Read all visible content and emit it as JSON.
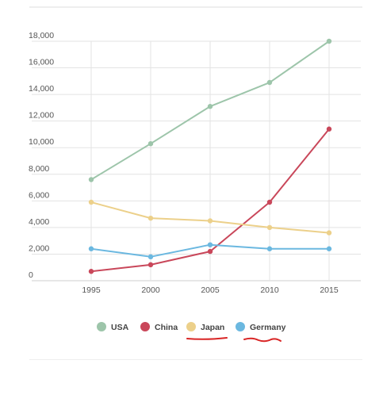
{
  "chart_data": {
    "type": "line",
    "title": "",
    "xlabel": "",
    "ylabel": "",
    "categories": [
      "1995",
      "2000",
      "2005",
      "2010",
      "2015"
    ],
    "ylim": [
      0,
      18000
    ],
    "yticks": [
      0,
      2000,
      4000,
      6000,
      8000,
      10000,
      12000,
      14000,
      16000,
      18000
    ],
    "ytick_labels": [
      "0",
      "2,000",
      "4,000",
      "6,000",
      "8,000",
      "10,000",
      "12,000",
      "14,000",
      "16,000",
      "18,000"
    ],
    "grid": true,
    "legend_position": "bottom",
    "series": [
      {
        "name": "USA",
        "color": "#9dc5aa",
        "values": [
          7600,
          10300,
          13100,
          14900,
          18000
        ]
      },
      {
        "name": "China",
        "color": "#c9475a",
        "values": [
          700,
          1200,
          2200,
          5900,
          11400
        ]
      },
      {
        "name": "Japan",
        "color": "#ecd08a",
        "values": [
          5900,
          4700,
          4500,
          4000,
          3600
        ]
      },
      {
        "name": "Germany",
        "color": "#6bb8e0",
        "values": [
          2400,
          1800,
          2700,
          2400,
          2400
        ]
      }
    ]
  },
  "colors": {
    "underline": "#d92525",
    "grid": "#e3e3e3",
    "axis": "#cfcfcf"
  }
}
